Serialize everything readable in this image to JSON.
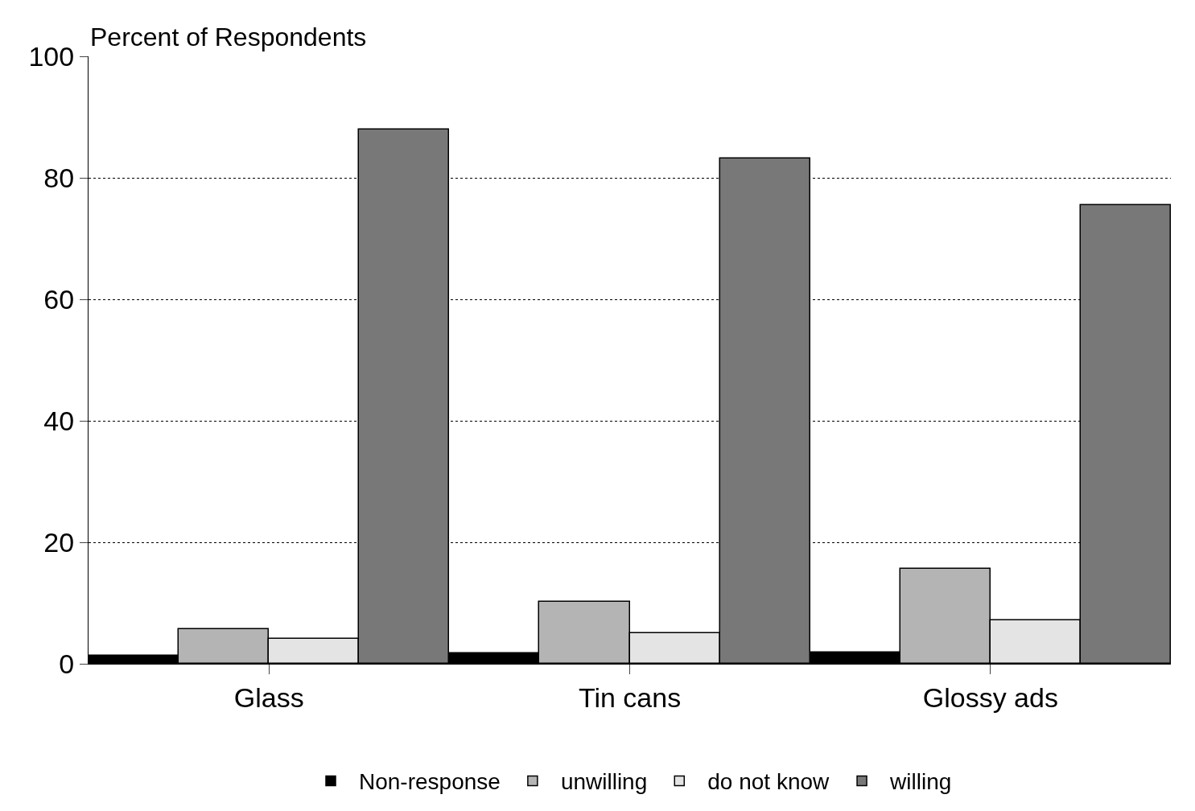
{
  "chart_data": {
    "type": "bar",
    "ylabel": "Percent of Respondents",
    "categories": [
      "Glass",
      "Tin cans",
      "Glossy ads"
    ],
    "series": [
      {
        "name": "Non-response",
        "color": "#000000",
        "values": [
          1.3,
          1.7,
          1.9
        ]
      },
      {
        "name": "unwilling",
        "color": "#b4b4b4",
        "values": [
          5.7,
          10.2,
          15.6
        ]
      },
      {
        "name": "do not know",
        "color": "#e4e4e4",
        "values": [
          4.1,
          5.0,
          7.2
        ]
      },
      {
        "name": "willing",
        "color": "#787878",
        "values": [
          88,
          83.2,
          75.5
        ]
      }
    ],
    "ylim": [
      0,
      100
    ],
    "yticks": [
      0,
      20,
      40,
      60,
      80,
      100
    ],
    "grid": "y",
    "legend": "bottom"
  }
}
